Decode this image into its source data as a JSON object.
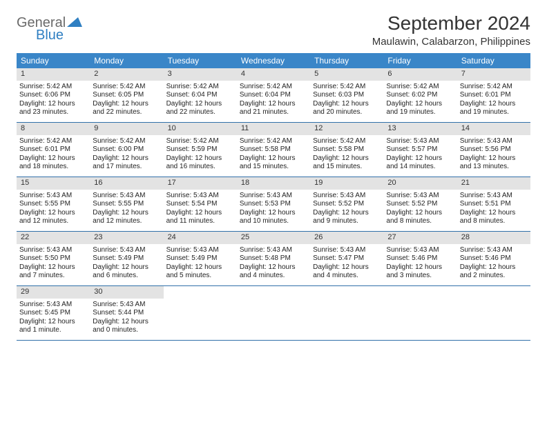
{
  "logo": {
    "line1": "General",
    "line2": "Blue"
  },
  "title": "September 2024",
  "location": "Maulawin, Calabarzon, Philippines",
  "colors": {
    "header_bg": "#3a86c8",
    "header_text": "#ffffff",
    "daynum_bg": "#e3e3e3",
    "week_border": "#2f6fa8",
    "logo_blue": "#2f7fc2",
    "text": "#222222"
  },
  "layout": {
    "columns": 7,
    "weeks": 5,
    "cell_font_size_pt": 7.5,
    "header_font_size_pt": 9
  },
  "weekdays": [
    "Sunday",
    "Monday",
    "Tuesday",
    "Wednesday",
    "Thursday",
    "Friday",
    "Saturday"
  ],
  "days": [
    {
      "n": "1",
      "sunrise": "5:42 AM",
      "sunset": "6:06 PM",
      "dl": "12 hours and 23 minutes."
    },
    {
      "n": "2",
      "sunrise": "5:42 AM",
      "sunset": "6:05 PM",
      "dl": "12 hours and 22 minutes."
    },
    {
      "n": "3",
      "sunrise": "5:42 AM",
      "sunset": "6:04 PM",
      "dl": "12 hours and 22 minutes."
    },
    {
      "n": "4",
      "sunrise": "5:42 AM",
      "sunset": "6:04 PM",
      "dl": "12 hours and 21 minutes."
    },
    {
      "n": "5",
      "sunrise": "5:42 AM",
      "sunset": "6:03 PM",
      "dl": "12 hours and 20 minutes."
    },
    {
      "n": "6",
      "sunrise": "5:42 AM",
      "sunset": "6:02 PM",
      "dl": "12 hours and 19 minutes."
    },
    {
      "n": "7",
      "sunrise": "5:42 AM",
      "sunset": "6:01 PM",
      "dl": "12 hours and 19 minutes."
    },
    {
      "n": "8",
      "sunrise": "5:42 AM",
      "sunset": "6:01 PM",
      "dl": "12 hours and 18 minutes."
    },
    {
      "n": "9",
      "sunrise": "5:42 AM",
      "sunset": "6:00 PM",
      "dl": "12 hours and 17 minutes."
    },
    {
      "n": "10",
      "sunrise": "5:42 AM",
      "sunset": "5:59 PM",
      "dl": "12 hours and 16 minutes."
    },
    {
      "n": "11",
      "sunrise": "5:42 AM",
      "sunset": "5:58 PM",
      "dl": "12 hours and 15 minutes."
    },
    {
      "n": "12",
      "sunrise": "5:42 AM",
      "sunset": "5:58 PM",
      "dl": "12 hours and 15 minutes."
    },
    {
      "n": "13",
      "sunrise": "5:43 AM",
      "sunset": "5:57 PM",
      "dl": "12 hours and 14 minutes."
    },
    {
      "n": "14",
      "sunrise": "5:43 AM",
      "sunset": "5:56 PM",
      "dl": "12 hours and 13 minutes."
    },
    {
      "n": "15",
      "sunrise": "5:43 AM",
      "sunset": "5:55 PM",
      "dl": "12 hours and 12 minutes."
    },
    {
      "n": "16",
      "sunrise": "5:43 AM",
      "sunset": "5:55 PM",
      "dl": "12 hours and 12 minutes."
    },
    {
      "n": "17",
      "sunrise": "5:43 AM",
      "sunset": "5:54 PM",
      "dl": "12 hours and 11 minutes."
    },
    {
      "n": "18",
      "sunrise": "5:43 AM",
      "sunset": "5:53 PM",
      "dl": "12 hours and 10 minutes."
    },
    {
      "n": "19",
      "sunrise": "5:43 AM",
      "sunset": "5:52 PM",
      "dl": "12 hours and 9 minutes."
    },
    {
      "n": "20",
      "sunrise": "5:43 AM",
      "sunset": "5:52 PM",
      "dl": "12 hours and 8 minutes."
    },
    {
      "n": "21",
      "sunrise": "5:43 AM",
      "sunset": "5:51 PM",
      "dl": "12 hours and 8 minutes."
    },
    {
      "n": "22",
      "sunrise": "5:43 AM",
      "sunset": "5:50 PM",
      "dl": "12 hours and 7 minutes."
    },
    {
      "n": "23",
      "sunrise": "5:43 AM",
      "sunset": "5:49 PM",
      "dl": "12 hours and 6 minutes."
    },
    {
      "n": "24",
      "sunrise": "5:43 AM",
      "sunset": "5:49 PM",
      "dl": "12 hours and 5 minutes."
    },
    {
      "n": "25",
      "sunrise": "5:43 AM",
      "sunset": "5:48 PM",
      "dl": "12 hours and 4 minutes."
    },
    {
      "n": "26",
      "sunrise": "5:43 AM",
      "sunset": "5:47 PM",
      "dl": "12 hours and 4 minutes."
    },
    {
      "n": "27",
      "sunrise": "5:43 AM",
      "sunset": "5:46 PM",
      "dl": "12 hours and 3 minutes."
    },
    {
      "n": "28",
      "sunrise": "5:43 AM",
      "sunset": "5:46 PM",
      "dl": "12 hours and 2 minutes."
    },
    {
      "n": "29",
      "sunrise": "5:43 AM",
      "sunset": "5:45 PM",
      "dl": "12 hours and 1 minute."
    },
    {
      "n": "30",
      "sunrise": "5:43 AM",
      "sunset": "5:44 PM",
      "dl": "12 hours and 0 minutes."
    }
  ],
  "labels": {
    "sunrise": "Sunrise:",
    "sunset": "Sunset:",
    "daylight": "Daylight:"
  }
}
